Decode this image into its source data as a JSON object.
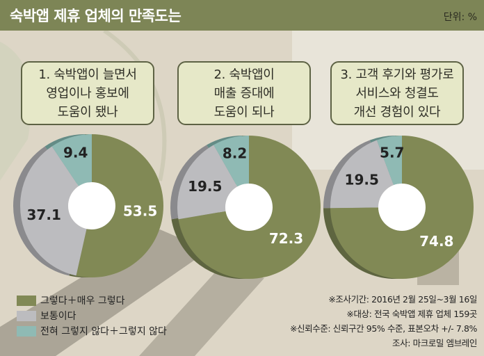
{
  "title": "숙박앱 제휴 업체의 만족도는",
  "unit": "단위: %",
  "questions": [
    "1. 숙박앱이 늘면서\n영업이나 홍보에\n도움이 됐나",
    "2. 숙박앱이\n매출 증대에\n도움이 되나",
    "3. 고객 후기와 평가로\n서비스와 청결도\n개선 경험이 있다"
  ],
  "colors": {
    "title_bar": "#7d8556",
    "agree": "#818955",
    "neutral": "#bcbcbf",
    "disagree": "#8fbab4"
  },
  "legend": [
    {
      "label": "그렇다＋매우 그렇다",
      "color": "#818955"
    },
    {
      "label": "보통이다",
      "color": "#bcbcbf"
    },
    {
      "label": "전혀 그렇지 않다＋그렇지 않다",
      "color": "#8fbab4"
    }
  ],
  "notes": [
    "※조사기간: 2016년 2월 25일~3월 16일",
    "※대상: 전국 숙박앱 제휴 업체 159곳",
    "※신뢰수준: 신뢰구간 95% 수준, 표본오차 +/- 7.8%",
    "조사: 마크로밀 엠브레인"
  ],
  "chart_data": [
    {
      "type": "pie",
      "title": "1. 숙박앱이 늘면서 영업이나 홍보에 도움이 됐나",
      "categories": [
        "그렇다＋매우 그렇다",
        "보통이다",
        "전혀 그렇지 않다＋그렇지 않다"
      ],
      "values": [
        53.5,
        37.1,
        9.4
      ],
      "labels": [
        "53.5",
        "37.1",
        "9.4"
      ]
    },
    {
      "type": "pie",
      "title": "2. 숙박앱이 매출 증대에 도움이 되나",
      "categories": [
        "그렇다＋매우 그렇다",
        "보통이다",
        "전혀 그렇지 않다＋그렇지 않다"
      ],
      "values": [
        72.3,
        19.5,
        8.2
      ],
      "labels": [
        "72.3",
        "19.5",
        "8.2"
      ]
    },
    {
      "type": "pie",
      "title": "3. 고객 후기와 평가로 서비스와 청결도 개선 경험이 있다",
      "categories": [
        "그렇다＋매우 그렇다",
        "보통이다",
        "전혀 그렇지 않다＋그렇지 않다"
      ],
      "values": [
        74.8,
        19.5,
        5.7
      ],
      "labels": [
        "74.8",
        "19.5",
        "5.7"
      ]
    }
  ]
}
